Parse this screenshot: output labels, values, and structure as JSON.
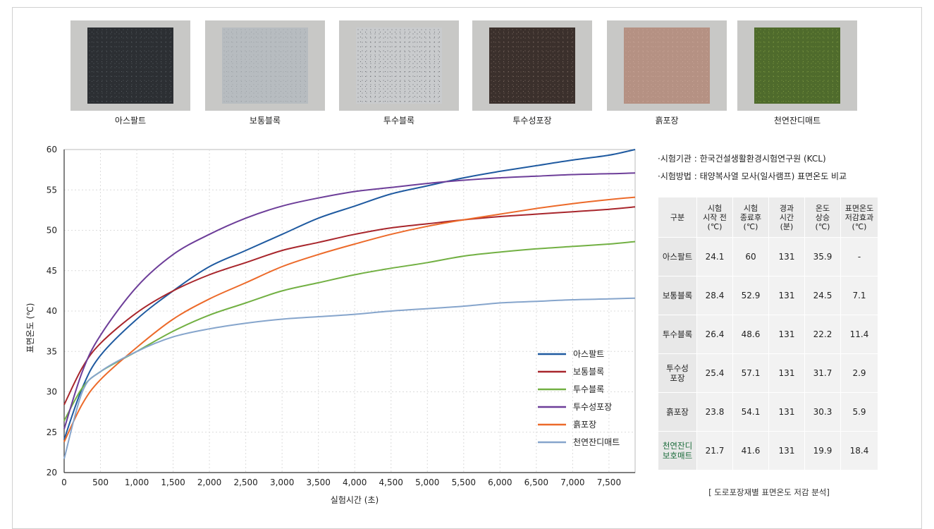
{
  "photos": [
    {
      "label": "아스팔트",
      "color": "#2c2f33",
      "speck": "#555a60"
    },
    {
      "label": "보통블록",
      "color": "#b7bcc0",
      "speck": "#9aa0a5"
    },
    {
      "label": "투수블록",
      "color": "#c9cbcd",
      "speck": "#6e7074"
    },
    {
      "label": "투수성포장",
      "color": "#3b302c",
      "speck": "#7a6a60"
    },
    {
      "label": "흙포장",
      "color": "#b59183",
      "speck": "#c9a699"
    },
    {
      "label": "천연잔디매트",
      "color": "#4f6b2c",
      "speck": "#7e9a42"
    }
  ],
  "info": {
    "line1": "·시험기관 : 한국건설생활환경시험연구원 (KCL)",
    "line2": "·시험방법 : 태양복사열 모사(일사램프) 표면온도 비교"
  },
  "table": {
    "headers": [
      "구분",
      "시험\n시작 전\n(℃)",
      "시험\n종료후\n(℃)",
      "경과\n시간\n(분)",
      "온도\n상승\n(℃)",
      "표면온도\n저감효과\n(℃)"
    ],
    "rows": [
      {
        "name": "아스팔트",
        "cells": [
          "24.1",
          "60",
          "131",
          "35.9",
          "-"
        ]
      },
      {
        "name": "보통블록",
        "cells": [
          "28.4",
          "52.9",
          "131",
          "24.5",
          "7.1"
        ]
      },
      {
        "name": "투수블록",
        "cells": [
          "26.4",
          "48.6",
          "131",
          "22.2",
          "11.4"
        ]
      },
      {
        "name": "투수성\n포장",
        "cells": [
          "25.4",
          "57.1",
          "131",
          "31.7",
          "2.9"
        ]
      },
      {
        "name": "흙포장",
        "cells": [
          "23.8",
          "54.1",
          "131",
          "30.3",
          "5.9"
        ]
      },
      {
        "name": "천연잔디\n보호매트",
        "cells": [
          "21.7",
          "41.6",
          "131",
          "19.9",
          "18.4"
        ],
        "green": true
      }
    ],
    "caption": "[ 도로포장재별 표면온도 저감 분석]"
  },
  "chart_data": {
    "type": "line",
    "title": "",
    "xlabel": "실험시간 (초)",
    "ylabel": "표면온도 (℃)",
    "xlim": [
      0,
      7860
    ],
    "ylim": [
      20,
      60
    ],
    "xticks": [
      0,
      500,
      1000,
      1500,
      2000,
      2500,
      3000,
      3500,
      4000,
      4500,
      5000,
      5500,
      6000,
      6500,
      7000,
      7500
    ],
    "xtick_labels": [
      "0",
      "500",
      "1,000",
      "1,500",
      "2,000",
      "2,500",
      "3,000",
      "3,500",
      "4,000",
      "4,500",
      "5,000",
      "5,500",
      "6,000",
      "6,500",
      "7,000",
      "7,500"
    ],
    "yticks": [
      20,
      25,
      30,
      35,
      40,
      45,
      50,
      55,
      60
    ],
    "grid": true,
    "legend": "bottom-right",
    "x": [
      0,
      250,
      500,
      1000,
      1500,
      2000,
      2500,
      3000,
      3500,
      4000,
      4500,
      5000,
      5500,
      6000,
      6500,
      7000,
      7500,
      7860
    ],
    "series": [
      {
        "name": "아스팔트",
        "color": "#1f5aa0",
        "values": [
          24.1,
          30.5,
          34.5,
          39.0,
          42.5,
          45.5,
          47.5,
          49.5,
          51.5,
          53.0,
          54.5,
          55.5,
          56.5,
          57.3,
          58.0,
          58.7,
          59.3,
          60.0
        ]
      },
      {
        "name": "보통블록",
        "color": "#a8262c",
        "values": [
          28.4,
          33.0,
          36.0,
          39.8,
          42.5,
          44.5,
          46.0,
          47.5,
          48.5,
          49.5,
          50.3,
          50.8,
          51.3,
          51.7,
          52.0,
          52.3,
          52.6,
          52.9
        ]
      },
      {
        "name": "투수블록",
        "color": "#72b043",
        "values": [
          26.4,
          30.5,
          32.5,
          35.0,
          37.5,
          39.5,
          41.0,
          42.5,
          43.5,
          44.5,
          45.3,
          46.0,
          46.8,
          47.3,
          47.7,
          48.0,
          48.3,
          48.6
        ]
      },
      {
        "name": "투수성포장",
        "color": "#6d3e99",
        "values": [
          25.4,
          32.5,
          37.0,
          43.0,
          47.0,
          49.5,
          51.5,
          53.0,
          54.0,
          54.8,
          55.3,
          55.8,
          56.2,
          56.5,
          56.7,
          56.9,
          57.0,
          57.1
        ]
      },
      {
        "name": "흙포장",
        "color": "#ec6a2a",
        "values": [
          23.8,
          28.5,
          31.5,
          35.5,
          39.0,
          41.5,
          43.5,
          45.5,
          47.0,
          48.3,
          49.5,
          50.5,
          51.3,
          52.0,
          52.7,
          53.3,
          53.8,
          54.1
        ]
      },
      {
        "name": "천연잔디매트",
        "color": "#86a5cc",
        "values": [
          21.7,
          30.0,
          32.5,
          35.0,
          36.8,
          37.8,
          38.5,
          39.0,
          39.3,
          39.6,
          40.0,
          40.3,
          40.6,
          41.0,
          41.2,
          41.4,
          41.5,
          41.6
        ]
      }
    ]
  }
}
